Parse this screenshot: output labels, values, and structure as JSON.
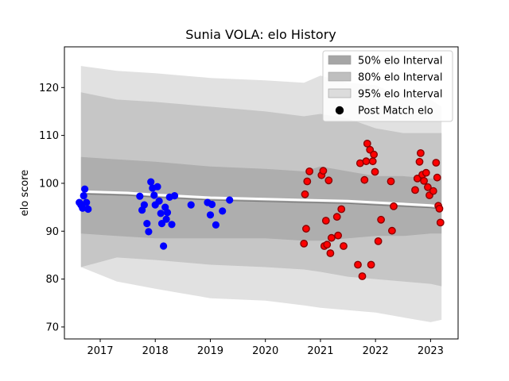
{
  "chart_data": {
    "type": "scatter",
    "title": "Sunia VOLA: elo History",
    "xlabel": "",
    "ylabel": "elo score",
    "xlim": [
      2016.35,
      2023.5
    ],
    "ylim": [
      67.5,
      128.5
    ],
    "x_ticks": [
      {
        "value": 2017,
        "label": "2017"
      },
      {
        "value": 2018,
        "label": "2018"
      },
      {
        "value": 2019,
        "label": "2019"
      },
      {
        "value": 2020,
        "label": "2020"
      },
      {
        "value": 2021,
        "label": "2021"
      },
      {
        "value": 2022,
        "label": "2022"
      },
      {
        "value": 2023,
        "label": "2023"
      }
    ],
    "y_ticks": [
      {
        "value": 70,
        "label": "70"
      },
      {
        "value": 80,
        "label": "80"
      },
      {
        "value": 90,
        "label": "90"
      },
      {
        "value": 100,
        "label": "100"
      },
      {
        "value": 110,
        "label": "110"
      },
      {
        "value": 120,
        "label": "120"
      }
    ],
    "grid": false,
    "legend_position": "top-right",
    "legend": [
      {
        "label": "50% elo Interval",
        "kind": "band",
        "color": "#a6a6a6"
      },
      {
        "label": "80% elo Interval",
        "kind": "band",
        "color": "#bfbfbf"
      },
      {
        "label": "95% elo Interval",
        "kind": "band",
        "color": "#dcdcdc"
      },
      {
        "label": "Post Match elo",
        "kind": "dot",
        "color": "#000000"
      }
    ],
    "bands": {
      "x": [
        2016.65,
        2017.3,
        2018.0,
        2018.5,
        2019.0,
        2020.0,
        2020.7,
        2021.0,
        2021.5,
        2022.0,
        2022.5,
        2023.0,
        2023.2
      ],
      "interval_95": {
        "upper": [
          124.5,
          123.5,
          123.0,
          122.5,
          122.0,
          121.5,
          121.0,
          122.5,
          121.0,
          120.5,
          118.0,
          117.5,
          116.0
        ],
        "lower": [
          82.5,
          79.5,
          78.0,
          77.0,
          76.0,
          75.5,
          74.5,
          74.0,
          73.5,
          73.0,
          72.0,
          71.0,
          71.5
        ]
      },
      "interval_80": {
        "upper": [
          119.0,
          117.5,
          117.0,
          116.5,
          116.0,
          115.0,
          114.0,
          114.5,
          113.5,
          111.5,
          110.5,
          110.5,
          110.5
        ],
        "lower": [
          82.5,
          84.5,
          84.0,
          83.5,
          83.0,
          82.5,
          82.0,
          81.5,
          80.5,
          80.0,
          79.5,
          79.0,
          78.5
        ]
      },
      "interval_50": {
        "upper": [
          105.5,
          105.0,
          104.5,
          104.0,
          103.5,
          103.0,
          102.5,
          103.5,
          102.5,
          101.5,
          101.5,
          101.0,
          101.0
        ],
        "lower": [
          89.5,
          89.0,
          88.5,
          88.5,
          88.5,
          88.5,
          88.0,
          88.0,
          88.5,
          89.0,
          89.0,
          89.5,
          89.5
        ]
      }
    },
    "elo_line": {
      "x": [
        2016.65,
        2017.5,
        2018.0,
        2019.0,
        2020.0,
        2020.7,
        2021.5,
        2022.0,
        2022.5,
        2023.0,
        2023.2
      ],
      "y": [
        98.3,
        98.0,
        97.6,
        97.0,
        96.7,
        96.5,
        96.3,
        96.0,
        95.7,
        95.4,
        95.1
      ]
    },
    "series": [
      {
        "color": "#0000ff",
        "edge": "#0000ff",
        "points": [
          [
            2016.62,
            96.0
          ],
          [
            2016.65,
            95.5
          ],
          [
            2016.68,
            94.8
          ],
          [
            2016.7,
            97.4
          ],
          [
            2016.72,
            98.8
          ],
          [
            2016.75,
            96.0
          ],
          [
            2016.78,
            94.6
          ],
          [
            2017.72,
            97.3
          ],
          [
            2017.76,
            94.4
          ],
          [
            2017.8,
            95.5
          ],
          [
            2017.85,
            91.6
          ],
          [
            2017.88,
            89.9
          ],
          [
            2017.92,
            100.3
          ],
          [
            2017.95,
            99.0
          ],
          [
            2017.98,
            97.5
          ],
          [
            2018.0,
            95.5
          ],
          [
            2018.04,
            99.3
          ],
          [
            2018.07,
            96.3
          ],
          [
            2018.1,
            93.7
          ],
          [
            2018.12,
            91.6
          ],
          [
            2018.15,
            86.9
          ],
          [
            2018.18,
            95.0
          ],
          [
            2018.2,
            92.5
          ],
          [
            2018.22,
            93.9
          ],
          [
            2018.26,
            97.1
          ],
          [
            2018.3,
            91.4
          ],
          [
            2018.35,
            97.4
          ],
          [
            2018.65,
            95.5
          ],
          [
            2018.95,
            96.0
          ],
          [
            2019.0,
            93.4
          ],
          [
            2019.03,
            95.6
          ],
          [
            2019.1,
            91.3
          ],
          [
            2019.22,
            94.2
          ],
          [
            2019.35,
            96.5
          ]
        ]
      },
      {
        "color": "#ff0000",
        "edge": "#8b0000",
        "points": [
          [
            2020.7,
            87.4
          ],
          [
            2020.72,
            97.7
          ],
          [
            2020.74,
            90.5
          ],
          [
            2020.76,
            100.4
          ],
          [
            2020.8,
            102.5
          ],
          [
            2021.02,
            101.7
          ],
          [
            2021.05,
            102.6
          ],
          [
            2021.07,
            86.9
          ],
          [
            2021.1,
            92.2
          ],
          [
            2021.12,
            87.2
          ],
          [
            2021.15,
            100.6
          ],
          [
            2021.18,
            85.4
          ],
          [
            2021.2,
            88.6
          ],
          [
            2021.3,
            93.0
          ],
          [
            2021.32,
            89.1
          ],
          [
            2021.38,
            94.6
          ],
          [
            2021.42,
            86.9
          ],
          [
            2021.68,
            83.0
          ],
          [
            2021.72,
            104.2
          ],
          [
            2021.76,
            80.6
          ],
          [
            2021.8,
            100.7
          ],
          [
            2021.83,
            104.6
          ],
          [
            2021.85,
            108.3
          ],
          [
            2021.9,
            107.0
          ],
          [
            2021.92,
            83.0
          ],
          [
            2021.95,
            104.6
          ],
          [
            2021.97,
            106.0
          ],
          [
            2021.99,
            102.4
          ],
          [
            2022.05,
            87.9
          ],
          [
            2022.1,
            92.4
          ],
          [
            2022.28,
            100.4
          ],
          [
            2022.3,
            90.1
          ],
          [
            2022.33,
            95.2
          ],
          [
            2022.72,
            98.6
          ],
          [
            2022.76,
            101.0
          ],
          [
            2022.8,
            104.5
          ],
          [
            2022.82,
            106.3
          ],
          [
            2022.85,
            101.8
          ],
          [
            2022.88,
            100.5
          ],
          [
            2022.92,
            102.2
          ],
          [
            2022.95,
            99.2
          ],
          [
            2022.98,
            97.5
          ],
          [
            2023.05,
            98.4
          ],
          [
            2023.1,
            104.3
          ],
          [
            2023.12,
            101.2
          ],
          [
            2023.14,
            95.3
          ],
          [
            2023.16,
            94.7
          ],
          [
            2023.18,
            91.8
          ]
        ]
      }
    ]
  }
}
